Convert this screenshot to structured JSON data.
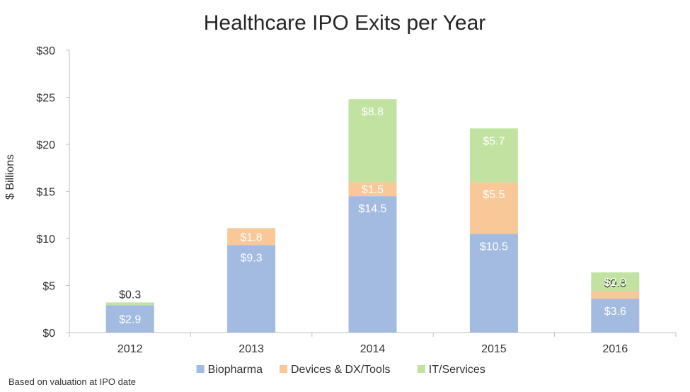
{
  "chart_data": {
    "type": "bar",
    "stacked": true,
    "title": "Healthcare IPO Exits per Year",
    "ylabel": "$ Billions",
    "xlabel": "",
    "ylim": [
      0,
      30
    ],
    "yticks": [
      0,
      5,
      10,
      15,
      20,
      25,
      30
    ],
    "ytick_labels": [
      "$0",
      "$5",
      "$10",
      "$15",
      "$20",
      "$25",
      "$30"
    ],
    "categories": [
      "2012",
      "2013",
      "2014",
      "2015",
      "2016"
    ],
    "series": [
      {
        "name": "Biopharma",
        "color": "#a3bbe0",
        "values": [
          2.9,
          9.3,
          14.5,
          10.5,
          3.6
        ],
        "labels": [
          "$2.9",
          "$9.3",
          "$14.5",
          "$10.5",
          "$3.6"
        ]
      },
      {
        "name": "Devices & DX/Tools",
        "color": "#f8c899",
        "values": [
          0.0,
          1.8,
          1.5,
          5.5,
          0.8
        ],
        "labels": [
          "",
          "$1.8",
          "$1.5",
          "$5.5",
          "$0.8"
        ]
      },
      {
        "name": "IT/Services",
        "color": "#c2e2a2",
        "values": [
          0.3,
          0.0,
          8.8,
          5.7,
          2.0
        ],
        "labels": [
          "$0.3",
          "",
          "$8.8",
          "$5.7",
          "$2.0"
        ]
      }
    ],
    "legend_position": "bottom",
    "grid": false
  },
  "footnote": "Based on valuation at IPO date"
}
